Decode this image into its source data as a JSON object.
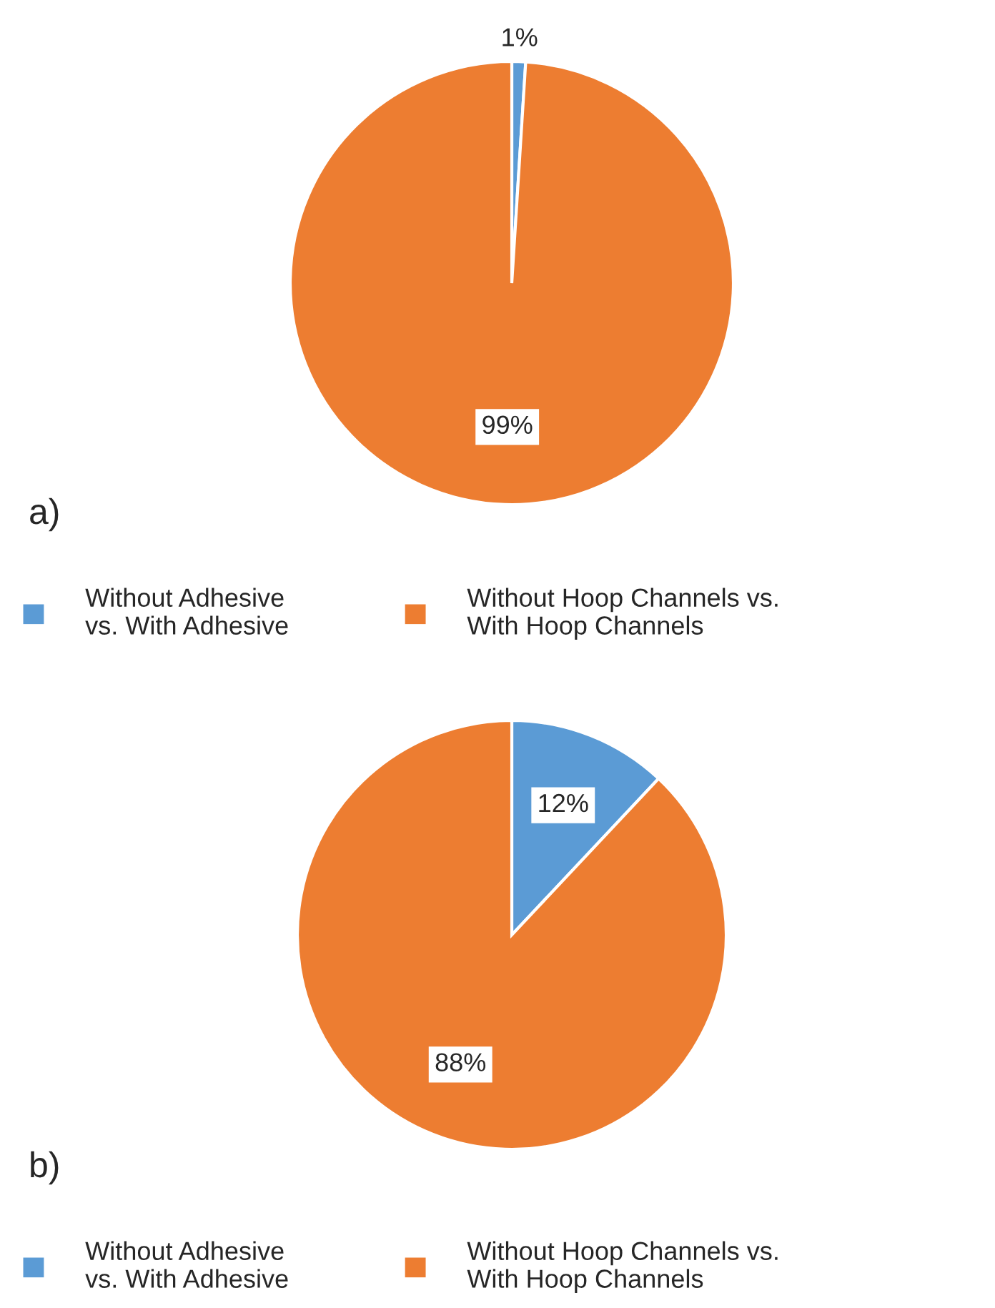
{
  "chart_data": [
    {
      "type": "pie",
      "categories": [
        "Without Adhesive\nvs. With Adhesive",
        "Without Hoop Channels vs.\nWith Hoop Channels"
      ],
      "values": [
        1,
        99
      ],
      "colors": [
        "#5b9bd5",
        "#ed7d31"
      ],
      "value_labels": [
        "1%",
        "99%"
      ],
      "annotations": [
        "a)"
      ],
      "legend": "bottom"
    },
    {
      "type": "pie",
      "categories": [
        "Without Adhesive\nvs. With Adhesive",
        "Without Hoop Channels vs.\nWith Hoop Channels"
      ],
      "values": [
        12,
        88
      ],
      "colors": [
        "#5b9bd5",
        "#ed7d31"
      ],
      "value_labels": [
        "12%",
        "88%"
      ],
      "annotations": [
        "b)"
      ],
      "legend": "bottom"
    }
  ]
}
